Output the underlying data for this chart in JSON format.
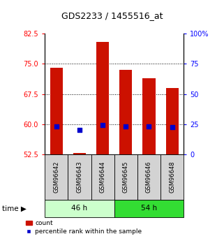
{
  "title": "GDS2233 / 1455516_at",
  "samples": [
    "GSM96642",
    "GSM96643",
    "GSM96644",
    "GSM96645",
    "GSM96646",
    "GSM96648"
  ],
  "count_values": [
    74.0,
    52.8,
    80.5,
    73.5,
    71.5,
    69.0
  ],
  "percentile_values_left": [
    59.5,
    58.5,
    59.8,
    59.5,
    59.5,
    59.3
  ],
  "ylim_left": [
    52.5,
    82.5
  ],
  "ylim_right": [
    0,
    100
  ],
  "yticks_left": [
    52.5,
    60.0,
    67.5,
    75.0,
    82.5
  ],
  "yticks_right": [
    0,
    25,
    50,
    75,
    100
  ],
  "ytick_right_labels": [
    "0",
    "25",
    "50",
    "75",
    "100%"
  ],
  "grid_lines": [
    60.0,
    67.5,
    75.0
  ],
  "bar_color": "#cc1100",
  "dot_color": "#0000cc",
  "bar_width": 0.55,
  "group1_color": "#ccffcc",
  "group2_color": "#44dd44",
  "legend_items": [
    "count",
    "percentile rank within the sample"
  ]
}
